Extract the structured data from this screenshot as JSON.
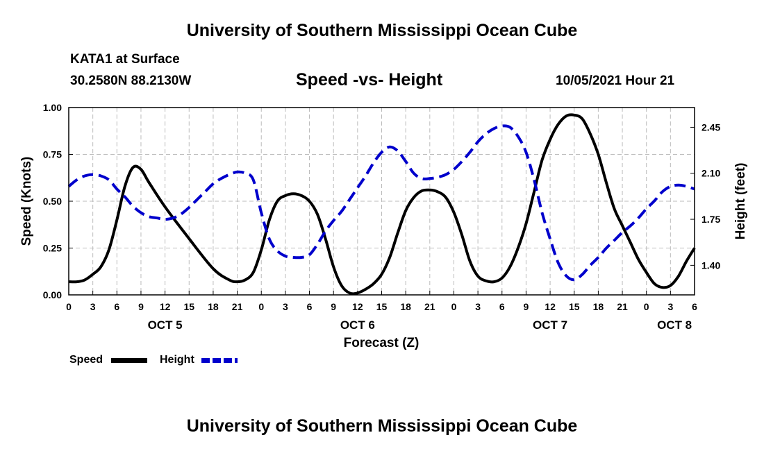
{
  "header": {
    "title": "University of Southern Mississippi Ocean Cube",
    "station": "KATA1 at Surface",
    "coords": "30.2580N  88.2130W",
    "subtitle": "Speed -vs- Height",
    "datetime": "10/05/2021 Hour 21"
  },
  "footer": {
    "title": "University of Southern Mississippi Ocean Cube"
  },
  "legend": {
    "speed_label": "Speed",
    "height_label": "Height",
    "speed_color": "#000000",
    "height_color": "#0000cc"
  },
  "chart_data": {
    "type": "line",
    "title": "Speed -vs- Height",
    "xlabel": "Forecast (Z)",
    "ylabel": "Speed (Knots)",
    "y2label": "Height (feet)",
    "grid": true,
    "xlim": [
      0,
      78
    ],
    "ylim": [
      0,
      1.0
    ],
    "y2lim": [
      1.175,
      2.6
    ],
    "y_ticks": [
      "0.00",
      "0.25",
      "0.50",
      "0.75",
      "1.00"
    ],
    "y_tick_values": [
      0,
      0.25,
      0.5,
      0.75,
      1.0
    ],
    "y2_ticks": [
      "1.40",
      "1.75",
      "2.10",
      "2.45"
    ],
    "y2_tick_values": [
      1.4,
      1.75,
      2.1,
      2.45
    ],
    "x_ticks": [
      "0",
      "3",
      "6",
      "9",
      "12",
      "15",
      "18",
      "21",
      "0",
      "3",
      "6",
      "9",
      "12",
      "15",
      "18",
      "21",
      "0",
      "3",
      "6",
      "9",
      "12",
      "15",
      "18",
      "21",
      "0",
      "3",
      "6"
    ],
    "x_tick_values": [
      0,
      3,
      6,
      9,
      12,
      15,
      18,
      21,
      24,
      27,
      30,
      33,
      36,
      39,
      42,
      45,
      48,
      51,
      54,
      57,
      60,
      63,
      66,
      69,
      72,
      75,
      78
    ],
    "day_labels": [
      {
        "label": "OCT 5",
        "hour": 12
      },
      {
        "label": "OCT 6",
        "hour": 36
      },
      {
        "label": "OCT 7",
        "hour": 60
      },
      {
        "label": "OCT 8",
        "hour": 75.5
      }
    ],
    "series": [
      {
        "name": "Speed",
        "axis": "left",
        "color": "#000000",
        "dash": "solid",
        "x": [
          0,
          1,
          2,
          3,
          4,
          5,
          6,
          7,
          8,
          9,
          10,
          12,
          15,
          18,
          20,
          21,
          22,
          23,
          24,
          25,
          26,
          27,
          28,
          29,
          30,
          31,
          32,
          33,
          34,
          35,
          36,
          37,
          38,
          39,
          40,
          41,
          42,
          43,
          44,
          45,
          46,
          47,
          48,
          49,
          50,
          51,
          52,
          53,
          54,
          55,
          56,
          57,
          58,
          59,
          60,
          61,
          62,
          63,
          64,
          65,
          66,
          67,
          68,
          69,
          70,
          71,
          72,
          73,
          74,
          75,
          76,
          77,
          78
        ],
        "values": [
          0.07,
          0.07,
          0.08,
          0.11,
          0.15,
          0.24,
          0.4,
          0.58,
          0.68,
          0.67,
          0.6,
          0.47,
          0.3,
          0.14,
          0.08,
          0.07,
          0.08,
          0.12,
          0.24,
          0.4,
          0.5,
          0.53,
          0.54,
          0.53,
          0.5,
          0.43,
          0.3,
          0.15,
          0.05,
          0.01,
          0.01,
          0.03,
          0.06,
          0.11,
          0.2,
          0.33,
          0.45,
          0.52,
          0.555,
          0.56,
          0.55,
          0.52,
          0.44,
          0.32,
          0.18,
          0.1,
          0.075,
          0.07,
          0.09,
          0.15,
          0.25,
          0.38,
          0.55,
          0.72,
          0.83,
          0.91,
          0.955,
          0.96,
          0.94,
          0.86,
          0.75,
          0.6,
          0.46,
          0.37,
          0.28,
          0.19,
          0.12,
          0.06,
          0.04,
          0.05,
          0.1,
          0.18,
          0.25
        ]
      },
      {
        "name": "Height",
        "axis": "right",
        "color": "#0000cc",
        "dash": "dashed",
        "x": [
          0,
          1,
          2,
          3,
          4,
          5,
          6,
          7,
          8,
          9,
          10,
          11,
          12,
          13,
          14,
          15,
          16,
          17,
          18,
          19,
          20,
          21,
          22,
          23,
          24,
          25,
          26,
          27,
          28,
          29,
          30,
          31,
          32,
          33,
          34,
          35,
          36,
          37,
          38,
          39,
          40,
          41,
          42,
          43,
          44,
          45,
          46,
          47,
          48,
          49,
          50,
          51,
          52,
          53,
          54,
          55,
          56,
          57,
          58,
          59,
          60,
          61,
          62,
          63,
          64,
          65,
          66,
          67,
          68,
          69,
          70,
          71,
          72,
          73,
          74,
          75,
          76,
          77,
          78
        ],
        "values": [
          2.0,
          2.05,
          2.08,
          2.09,
          2.08,
          2.05,
          1.98,
          1.92,
          1.85,
          1.8,
          1.77,
          1.76,
          1.75,
          1.76,
          1.79,
          1.84,
          1.9,
          1.96,
          2.02,
          2.06,
          2.09,
          2.11,
          2.1,
          2.05,
          1.8,
          1.6,
          1.51,
          1.47,
          1.46,
          1.46,
          1.48,
          1.56,
          1.66,
          1.74,
          1.81,
          1.9,
          1.99,
          2.08,
          2.18,
          2.26,
          2.3,
          2.27,
          2.19,
          2.1,
          2.06,
          2.06,
          2.07,
          2.09,
          2.13,
          2.19,
          2.26,
          2.34,
          2.4,
          2.44,
          2.46,
          2.45,
          2.38,
          2.26,
          2.05,
          1.8,
          1.6,
          1.42,
          1.32,
          1.29,
          1.33,
          1.4,
          1.46,
          1.53,
          1.59,
          1.65,
          1.7,
          1.76,
          1.83,
          1.89,
          1.96,
          2.0,
          2.01,
          2.0,
          1.98
        ]
      }
    ]
  }
}
